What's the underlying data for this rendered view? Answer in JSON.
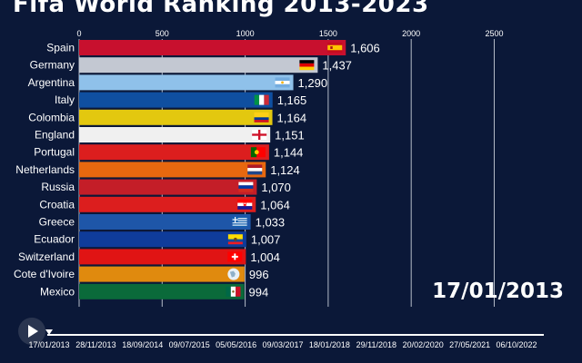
{
  "page_title": "Fifa World Ranking 2013-2023",
  "current_date": "17/01/2013",
  "chart_data": {
    "type": "bar",
    "orientation": "horizontal",
    "title": "Fifa World Ranking 2013-2023",
    "categories": [
      "Spain",
      "Germany",
      "Argentina",
      "Italy",
      "Colombia",
      "England",
      "Portugal",
      "Netherlands",
      "Russia",
      "Croatia",
      "Greece",
      "Ecuador",
      "Switzerland",
      "Cote d'Ivoire",
      "Mexico"
    ],
    "values": [
      1606,
      1437,
      1290,
      1165,
      1164,
      1151,
      1144,
      1124,
      1070,
      1064,
      1033,
      1007,
      1004,
      996,
      994
    ],
    "value_labels": [
      "1,606",
      "1,437",
      "1,290",
      "1,165",
      "1,164",
      "1,151",
      "1,144",
      "1,124",
      "1,070",
      "1,064",
      "1,033",
      "1,007",
      "1,004",
      "996",
      "994"
    ],
    "colors": [
      "#c8102e",
      "#c3c8d2",
      "#8fc1ea",
      "#0f4fa0",
      "#e3c80f",
      "#f0f0f0",
      "#dc1e1e",
      "#e8680f",
      "#c41e28",
      "#dc1e1e",
      "#1e56a8",
      "#0f3c9a",
      "#e01414",
      "#e08a0e",
      "#0a6a3a"
    ],
    "flags": [
      "spain-flag",
      "germany-flag",
      "argentina-flag",
      "italy-flag",
      "colombia-flag",
      "england-flag",
      "portugal-flag",
      "netherlands-flag",
      "russia-flag",
      "croatia-flag",
      "greece-flag",
      "ecuador-flag",
      "switzerland-flag",
      "cote-divoire-flag",
      "mexico-flag"
    ],
    "x_ticks": [
      0,
      500,
      1000,
      1500,
      2000,
      2500
    ],
    "x_tick_labels": [
      "0",
      "500",
      "1000",
      "1500",
      "2000",
      "2500"
    ],
    "xlim": [
      0,
      2700
    ],
    "grid": true
  },
  "timeline": {
    "labels": [
      "17/01/2013",
      "28/11/2013",
      "18/09/2014",
      "09/07/2015",
      "05/05/2016",
      "09/03/2017",
      "18/01/2018",
      "29/11/2018",
      "20/02/2020",
      "27/05/2021",
      "06/10/2022"
    ],
    "position": 0
  },
  "play_icon": "play-icon"
}
